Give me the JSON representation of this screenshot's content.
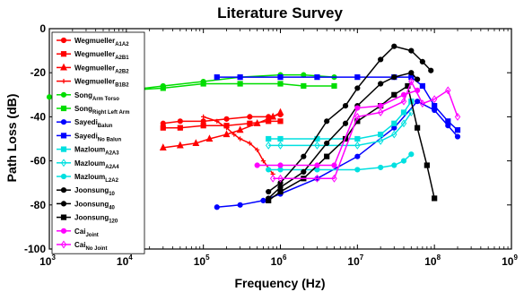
{
  "chart_data": {
    "type": "line",
    "title": "Literature Survey",
    "xlabel": "Frequency (Hz)",
    "ylabel": "Path Loss (dB)",
    "xscale": "log",
    "xlim": [
      1000,
      1000000000
    ],
    "ylim": [
      -100,
      0
    ],
    "x_ticks": [
      {
        "value": 1000,
        "base": "10",
        "exp": "3"
      },
      {
        "value": 10000,
        "base": "10",
        "exp": "4"
      },
      {
        "value": 100000,
        "base": "10",
        "exp": "5"
      },
      {
        "value": 1000000,
        "base": "10",
        "exp": "6"
      },
      {
        "value": 10000000,
        "base": "10",
        "exp": "7"
      },
      {
        "value": 100000000,
        "base": "10",
        "exp": "8"
      },
      {
        "value": 1000000000,
        "base": "10",
        "exp": "9"
      }
    ],
    "y_ticks": [
      {
        "value": 0,
        "label": "0"
      },
      {
        "value": -20,
        "label": "-20"
      },
      {
        "value": -40,
        "label": "-40"
      },
      {
        "value": -60,
        "label": "-60"
      },
      {
        "value": -80,
        "label": "-80"
      },
      {
        "value": -100,
        "label": "-100"
      }
    ],
    "legend_position": "top-left",
    "grid": false,
    "series": [
      {
        "name": "Wegmueller",
        "sub": "A1A2",
        "color": "#ff0000",
        "marker": "circle",
        "x": [
          30000,
          50000,
          100000,
          200000,
          400000,
          700000,
          1000000
        ],
        "y": [
          -43,
          -42,
          -42,
          -41,
          -40,
          -40,
          -39
        ]
      },
      {
        "name": "Wegmueller",
        "sub": "A2B1",
        "color": "#ff0000",
        "marker": "square",
        "x": [
          30000,
          50000,
          100000,
          200000,
          400000,
          700000,
          1000000
        ],
        "y": [
          -45,
          -45,
          -44,
          -44,
          -43,
          -42,
          -42
        ]
      },
      {
        "name": "Wegmueller",
        "sub": "A2B2",
        "color": "#ff0000",
        "marker": "triangle",
        "x": [
          30000,
          50000,
          80000,
          120000,
          200000,
          300000,
          500000,
          800000,
          1000000
        ],
        "y": [
          -54,
          -53,
          -52,
          -50,
          -48,
          -46,
          -43,
          -40,
          -38
        ]
      },
      {
        "name": "Wegmueller",
        "sub": "B1B2",
        "color": "#ff0000",
        "marker": "plus",
        "x": [
          100000,
          150000,
          200000,
          250000,
          300000,
          400000,
          500000,
          600000,
          800000
        ],
        "y": [
          -40,
          -42,
          -45,
          -48,
          -50,
          -52,
          -55,
          -60,
          -66
        ]
      },
      {
        "name": "Song",
        "sub": "Arm Torso",
        "color": "#00dd00",
        "marker": "circle",
        "x": [
          1000,
          3000,
          10000,
          30000,
          100000,
          300000,
          1000000,
          2000000,
          5000000
        ],
        "y": [
          -31,
          -29,
          -28,
          -26,
          -24,
          -22,
          -21,
          -21,
          -22
        ]
      },
      {
        "name": "Song",
        "sub": "Right Left Arm",
        "color": "#00dd00",
        "marker": "square",
        "x": [
          10000,
          30000,
          100000,
          300000,
          1000000,
          2000000,
          5000000
        ],
        "y": [
          -28,
          -27,
          -25,
          -25,
          -25,
          -26,
          -26
        ]
      },
      {
        "name": "Sayedi",
        "sub": "Balun",
        "color": "#0000ff",
        "marker": "circle",
        "x": [
          150000,
          300000,
          600000,
          1000000,
          3000000,
          10000000,
          30000000,
          60000000,
          100000000,
          150000000,
          200000000
        ],
        "y": [
          -81,
          -80,
          -78,
          -75,
          -68,
          -58,
          -45,
          -33,
          -37,
          -44,
          -49
        ]
      },
      {
        "name": "Sayedi",
        "sub": "No Balun",
        "color": "#0000ff",
        "marker": "square",
        "x": [
          150000,
          300000,
          1000000,
          3000000,
          10000000,
          30000000,
          50000000,
          70000000,
          100000000,
          150000000,
          200000000
        ],
        "y": [
          -22,
          -22,
          -22,
          -22,
          -22,
          -22,
          -22,
          -26,
          -35,
          -42,
          -46
        ]
      },
      {
        "name": "Mazloum",
        "sub": "A2A3",
        "color": "#00e0e0",
        "marker": "square",
        "x": [
          700000,
          1000000,
          3000000,
          10000000,
          20000000,
          30000000,
          40000000,
          50000000
        ],
        "y": [
          -50,
          -50,
          -50,
          -50,
          -48,
          -43,
          -38,
          -33
        ]
      },
      {
        "name": "Mazloum",
        "sub": "A2A4",
        "color": "#00e0e0",
        "marker": "diamond",
        "x": [
          700000,
          1000000,
          3000000,
          10000000,
          20000000,
          30000000,
          40000000,
          50000000
        ],
        "y": [
          -53,
          -53,
          -53,
          -53,
          -51,
          -48,
          -43,
          -38
        ]
      },
      {
        "name": "Mazloum",
        "sub": "L2A2",
        "color": "#00e0e0",
        "marker": "circle",
        "x": [
          700000,
          1000000,
          3000000,
          10000000,
          20000000,
          30000000,
          40000000,
          50000000
        ],
        "y": [
          -64,
          -64,
          -64,
          -64,
          -63,
          -62,
          -60,
          -57
        ]
      },
      {
        "name": "Joonsung",
        "sub": "10",
        "color": "#000000",
        "marker": "circle",
        "x": [
          700000,
          1000000,
          2000000,
          4000000,
          7000000,
          10000000,
          20000000,
          30000000,
          50000000,
          70000000,
          90000000
        ],
        "y": [
          -74,
          -70,
          -58,
          -42,
          -35,
          -27,
          -14,
          -8,
          -10,
          -15,
          -19
        ]
      },
      {
        "name": "Joonsung",
        "sub": "40",
        "color": "#000000",
        "marker": "circle",
        "x": [
          700000,
          1000000,
          2000000,
          4000000,
          7000000,
          10000000,
          20000000,
          30000000,
          50000000,
          60000000
        ],
        "y": [
          -77,
          -72,
          -65,
          -52,
          -43,
          -35,
          -25,
          -22,
          -20,
          -23
        ]
      },
      {
        "name": "Joonsung",
        "sub": "120",
        "color": "#000000",
        "marker": "square",
        "x": [
          700000,
          1000000,
          2000000,
          4000000,
          7000000,
          10000000,
          20000000,
          30000000,
          45000000,
          60000000,
          80000000,
          100000000
        ],
        "y": [
          -78,
          -74,
          -68,
          -58,
          -50,
          -42,
          -35,
          -30,
          -26,
          -45,
          -62,
          -77
        ]
      },
      {
        "name": "Cai",
        "sub": "Joint",
        "color": "#ff00ff",
        "marker": "circle",
        "x": [
          500000,
          1000000,
          3000000,
          5000000,
          10000000,
          20000000,
          40000000,
          60000000
        ],
        "y": [
          -62,
          -62,
          -62,
          -62,
          -36,
          -35,
          -30,
          -28
        ]
      },
      {
        "name": "Cai",
        "sub": "No Joint",
        "color": "#ff00ff",
        "marker": "diamond",
        "x": [
          800000,
          1000000,
          3000000,
          5000000,
          10000000,
          20000000,
          40000000,
          50000000,
          70000000,
          100000000,
          150000000,
          200000000
        ],
        "y": [
          -68,
          -68,
          -68,
          -68,
          -40,
          -38,
          -33,
          -24,
          -34,
          -32,
          -28,
          -40
        ]
      }
    ]
  }
}
